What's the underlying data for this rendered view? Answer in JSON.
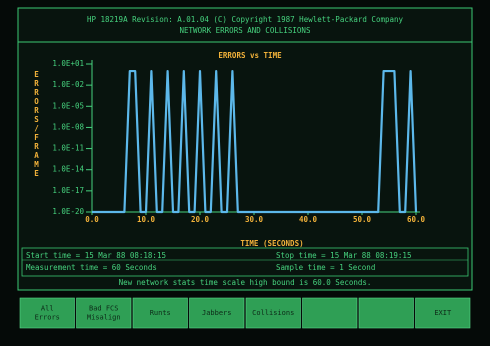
{
  "header": {
    "title": "HP 18219A Revision: A.01.04  (C) Copyright 1987 Hewlett-Packard Company",
    "subtitle": "NETWORK ERRORS AND COLLISIONS"
  },
  "chart_data": {
    "type": "line",
    "title": "ERRORS vs TIME",
    "x_label": "TIME (SECONDS)",
    "y_label": "ERRORS/FRAME",
    "log_scale": true,
    "ylim": [
      1e-20,
      10
    ],
    "yticks": [
      {
        "value": 10,
        "label": "1.0E+01"
      },
      {
        "value": 0.01,
        "label": "1.0E-02"
      },
      {
        "value": 1e-05,
        "label": "1.0E-05"
      },
      {
        "value": 1e-08,
        "label": "1.0E-08"
      },
      {
        "value": 1e-11,
        "label": "1.0E-11"
      },
      {
        "value": 1e-14,
        "label": "1.0E-14"
      },
      {
        "value": 1e-17,
        "label": "1.0E-17"
      },
      {
        "value": 1e-20,
        "label": "1.0E-20"
      }
    ],
    "xlim": [
      0,
      60
    ],
    "xticks": [
      {
        "value": 0,
        "label": "0.0"
      },
      {
        "value": 10,
        "label": "10.0"
      },
      {
        "value": 20,
        "label": "20.0"
      },
      {
        "value": 30,
        "label": "30.0"
      },
      {
        "value": 40,
        "label": "40.0"
      },
      {
        "value": 50,
        "label": "50.0"
      },
      {
        "value": 60,
        "label": "60.0"
      }
    ],
    "x": [
      0,
      1,
      2,
      3,
      4,
      5,
      6,
      7,
      8,
      9,
      10,
      11,
      12,
      13,
      14,
      15,
      16,
      17,
      18,
      19,
      20,
      21,
      22,
      23,
      24,
      25,
      26,
      27,
      28,
      29,
      30,
      31,
      32,
      33,
      34,
      35,
      36,
      37,
      38,
      39,
      40,
      41,
      42,
      43,
      44,
      45,
      46,
      47,
      48,
      49,
      50,
      51,
      52,
      53,
      54,
      55,
      56,
      57,
      58,
      59,
      60
    ],
    "series": [
      {
        "color": "#5cb8ea",
        "values": [
          1e-20,
          1e-20,
          1e-20,
          1e-20,
          1e-20,
          1e-20,
          1e-20,
          1,
          1,
          1e-20,
          1e-20,
          1,
          1e-20,
          1e-20,
          1,
          1e-20,
          1e-20,
          1,
          1e-20,
          1e-20,
          1,
          1e-20,
          1e-20,
          1,
          1e-20,
          1e-20,
          1,
          1e-20,
          1e-20,
          1e-20,
          1e-20,
          1e-20,
          1e-20,
          1e-20,
          1e-20,
          1e-20,
          1e-20,
          1e-20,
          1e-20,
          1e-20,
          1e-20,
          1e-20,
          1e-20,
          1e-20,
          1e-20,
          1e-20,
          1e-20,
          1e-20,
          1e-20,
          1e-20,
          1e-20,
          1e-20,
          1e-20,
          1e-20,
          1,
          1,
          1,
          1e-20,
          1e-20,
          1,
          1e-20
        ]
      }
    ],
    "grid": false
  },
  "status": {
    "start": "Start time = 15 Mar 88  08:18:15",
    "stop": "Stop time = 15 Mar 88  08:19:15",
    "measurement": "Measurement time = 60 Seconds",
    "sample": "Sample time =        1 Second"
  },
  "message": "New network stats time scale high bound is 60.0 Seconds.",
  "softkeys": [
    [
      "All",
      "Errors"
    ],
    [
      "Bad FCS",
      "Misalign"
    ],
    [
      "Runts"
    ],
    [
      "Jabbers"
    ],
    [
      "Collisions"
    ],
    [],
    [],
    [
      "EXIT"
    ]
  ]
}
